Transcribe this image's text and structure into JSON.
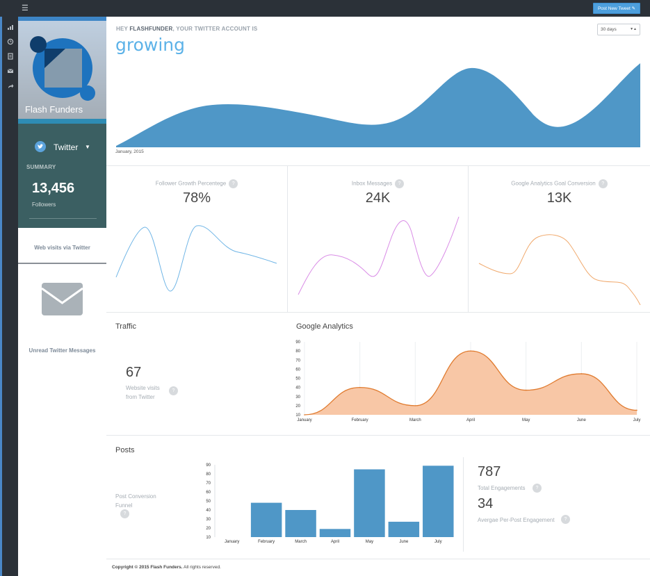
{
  "topbar": {
    "menu_icon": "hamburger-icon",
    "post_button_label": "Post New Tweet ✎"
  },
  "rail": {
    "icons": [
      "bar-chart-icon",
      "clock-icon",
      "document-icon",
      "mail-icon",
      "share-icon"
    ]
  },
  "profile": {
    "name": "Flash Funders",
    "network": "Twitter",
    "summary_label": "SUMMARY",
    "followers_value": "13,456",
    "followers_label": "Followers",
    "web_visits_label": "Web visits via Twitter",
    "unread_label": "Unread Twitter Messages",
    "colors": {
      "accent": "#3d85c6",
      "panel": "#3b5f62",
      "twitter": "#5ca3dc"
    }
  },
  "header": {
    "prefix": "HEY ",
    "username": "FLASHFUNDER",
    "suffix": ", YOUR TWITTER ACCOUNT IS",
    "status_word": "growing",
    "range_value": "30 days",
    "hero_xlabel": "January, 2015",
    "hero_color": "#4f97c7"
  },
  "stats": [
    {
      "title": "Follower Growth Percentege",
      "value": "78%",
      "help": "?",
      "line_color": "#6fb5e6"
    },
    {
      "title": "Inbox Messages",
      "value": "24K",
      "help": "?",
      "line_color": "#d98be6"
    },
    {
      "title": "Google Analytics Goal Conversion",
      "value": "13K",
      "help": "?",
      "line_color": "#f0a86b"
    }
  ],
  "traffic": {
    "title": "Traffic",
    "value": "67",
    "label_line1": "Website visits",
    "label_line2": "from Twitter",
    "help": "?"
  },
  "google_analytics": {
    "title": "Google Analytics"
  },
  "posts": {
    "title": "Posts",
    "funnel_line1": "Post Conversion",
    "funnel_line2": "Funnel",
    "help": "?",
    "engagements_value": "787",
    "engagements_label": "Total Engagements",
    "per_post_value": "34",
    "per_post_label": "Avergae Per-Post Engagement"
  },
  "footer": {
    "copyright_bold": "Copyright © 2015 Flash Funders.",
    "rights": " All rights reserved."
  },
  "chart_data": [
    {
      "type": "area",
      "categories": [
        "January",
        "February",
        "March",
        "April",
        "May",
        "June",
        "July"
      ],
      "series": [
        {
          "values": [
            10,
            40,
            20,
            80,
            37,
            55,
            15
          ]
        }
      ],
      "ylim": [
        10,
        90
      ],
      "yticks": [
        10,
        20,
        30,
        40,
        50,
        60,
        70,
        80,
        90
      ],
      "grid": true,
      "colors": {
        "line": "#e07b2f",
        "fill": "#f8c7a6"
      }
    },
    {
      "type": "bar",
      "categories": [
        "January",
        "February",
        "March",
        "April",
        "May",
        "June",
        "July"
      ],
      "values": [
        10,
        48,
        40,
        19,
        85,
        27,
        89
      ],
      "ylim": [
        10,
        90
      ],
      "yticks": [
        10,
        20,
        30,
        40,
        50,
        60,
        70,
        80,
        90
      ],
      "colors": {
        "bar": "#4f97c7"
      }
    }
  ]
}
